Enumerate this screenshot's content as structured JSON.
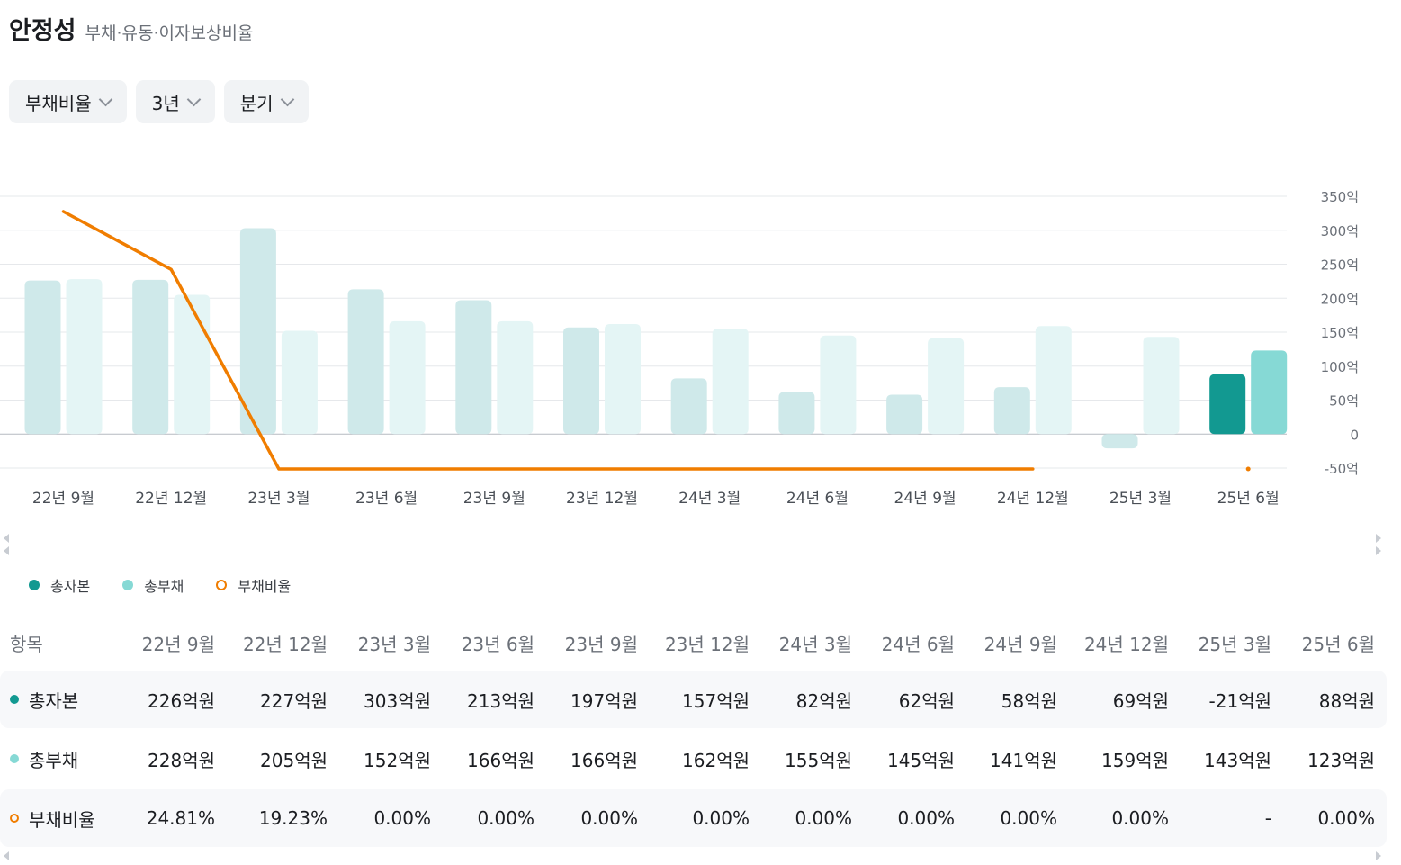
{
  "header": {
    "title": "안정성",
    "subtitle": "부채·유동·이자보상비율"
  },
  "filters": [
    {
      "label": "부채비율"
    },
    {
      "label": "3년"
    },
    {
      "label": "분기"
    }
  ],
  "legend": [
    {
      "label": "총자본",
      "color": "#129991",
      "marker": "dot"
    },
    {
      "label": "총부채",
      "color": "#86d9d5",
      "marker": "dot"
    },
    {
      "label": "부채비율",
      "color": "#f07d00",
      "marker": "ring"
    }
  ],
  "chart_data": {
    "type": "bar",
    "categories": [
      "22년 9월",
      "22년 12월",
      "23년 3월",
      "23년 6월",
      "23년 9월",
      "23년 12월",
      "24년 3월",
      "24년 6월",
      "24년 9월",
      "24년 12월",
      "25년 3월",
      "25년 6월"
    ],
    "series": [
      {
        "name": "총자본",
        "type": "bar",
        "values": [
          226,
          227,
          303,
          213,
          197,
          157,
          82,
          62,
          58,
          69,
          -21,
          88
        ]
      },
      {
        "name": "총부채",
        "type": "bar",
        "values": [
          228,
          205,
          152,
          166,
          166,
          162,
          155,
          145,
          141,
          159,
          143,
          123
        ]
      },
      {
        "name": "부채비율",
        "type": "line",
        "values": [
          24.81,
          19.23,
          0.0,
          0.0,
          0.0,
          0.0,
          0.0,
          0.0,
          0.0,
          0.0,
          null,
          0.0
        ]
      }
    ],
    "ylim": [
      -50,
      350
    ],
    "yticks": [
      "350억",
      "300억",
      "250억",
      "200억",
      "150억",
      "100억",
      "50억",
      "0",
      "-50억"
    ],
    "grid": true,
    "highlight_index": 11
  },
  "table": {
    "header_label": "항목",
    "periods": [
      "22년 9월",
      "22년 12월",
      "23년 3월",
      "23년 6월",
      "23년 9월",
      "23년 12월",
      "24년 3월",
      "24년 6월",
      "24년 9월",
      "24년 12월",
      "25년 3월",
      "25년 6월"
    ],
    "rows": [
      {
        "label": "총자본",
        "values": [
          "226억원",
          "227억원",
          "303억원",
          "213억원",
          "197억원",
          "157억원",
          "82억원",
          "62억원",
          "58억원",
          "69억원",
          "-21억원",
          "88억원"
        ]
      },
      {
        "label": "총부채",
        "values": [
          "228억원",
          "205억원",
          "152억원",
          "166억원",
          "166억원",
          "162억원",
          "155억원",
          "145억원",
          "141억원",
          "159억원",
          "143억원",
          "123억원"
        ]
      },
      {
        "label": "부채비율",
        "values": [
          "24.81%",
          "19.23%",
          "0.00%",
          "0.00%",
          "0.00%",
          "0.00%",
          "0.00%",
          "0.00%",
          "0.00%",
          "0.00%",
          "-",
          "0.00%"
        ]
      }
    ]
  }
}
